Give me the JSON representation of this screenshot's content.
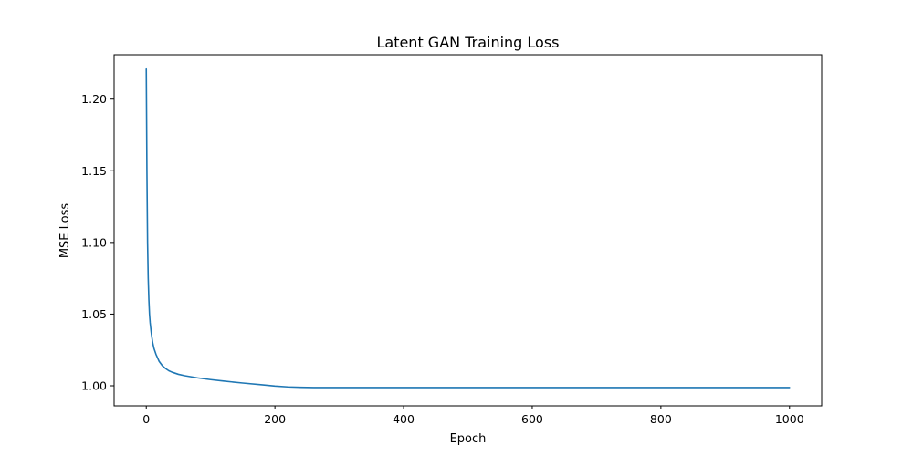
{
  "chart_data": {
    "type": "line",
    "title": "Latent GAN Training Loss",
    "xlabel": "Epoch",
    "ylabel": "MSE Loss",
    "xlim": [
      -50,
      1050
    ],
    "ylim": [
      0.986,
      1.231
    ],
    "xticks": [
      0,
      200,
      400,
      600,
      800,
      1000
    ],
    "xtick_labels": [
      "0",
      "200",
      "400",
      "600",
      "800",
      "1000"
    ],
    "yticks": [
      1.0,
      1.05,
      1.1,
      1.15,
      1.2
    ],
    "ytick_labels": [
      "1.00",
      "1.05",
      "1.10",
      "1.15",
      "1.20"
    ],
    "grid": false,
    "legend": "none",
    "series": [
      {
        "color": "#1f77b4",
        "x": [
          0,
          1,
          2,
          3,
          4,
          5,
          6,
          8,
          10,
          12,
          15,
          20,
          25,
          30,
          35,
          40,
          50,
          60,
          80,
          100,
          120,
          150,
          180,
          200,
          220,
          240,
          260,
          300,
          400,
          500,
          600,
          700,
          800,
          900,
          1000
        ],
        "y": [
          1.221,
          1.15,
          1.1,
          1.075,
          1.06,
          1.05,
          1.044,
          1.036,
          1.03,
          1.026,
          1.022,
          1.017,
          1.014,
          1.012,
          1.0105,
          1.0095,
          1.008,
          1.007,
          1.0055,
          1.0043,
          1.0033,
          1.0019,
          1.0007,
          0.9998,
          0.9992,
          0.9989,
          0.9988,
          0.9988,
          0.9988,
          0.9988,
          0.9988,
          0.9988,
          0.9988,
          0.9988,
          0.9988
        ]
      }
    ]
  }
}
